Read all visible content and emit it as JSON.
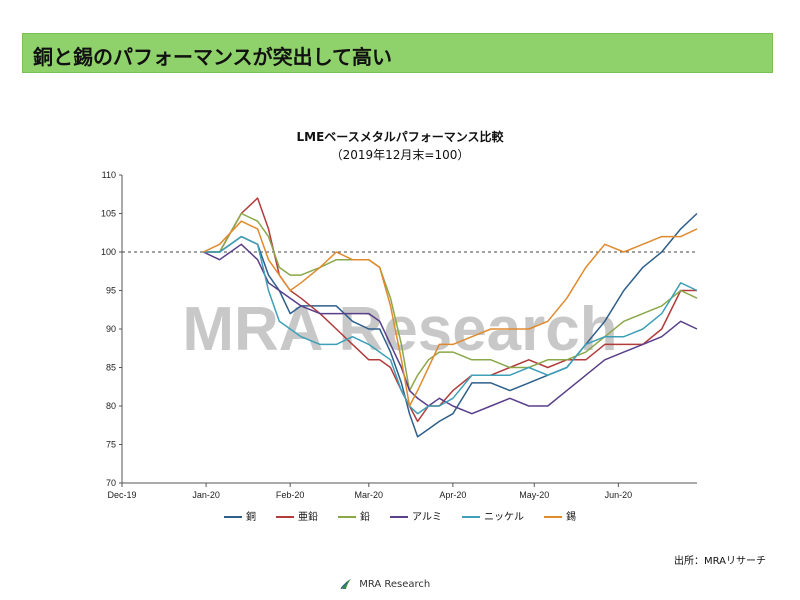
{
  "banner": {
    "title": "銅と錫のパフォーマンスが突出して高い"
  },
  "source_label": "出所：MRAリサーチ",
  "logo": {
    "text": "MRA Research",
    "icon": "mra-logo-icon"
  },
  "watermark": "MRA Research",
  "chart_data": {
    "type": "line",
    "title": "LMEベースメタルパフォーマンス比較",
    "subtitle": "（2019年12月末=100）",
    "ylim": [
      70,
      110
    ],
    "yticks": [
      "70",
      "75",
      "80",
      "85",
      "90",
      "95",
      "100",
      "105",
      "110"
    ],
    "xticks": [
      "Dec-19",
      "Jan-20",
      "Feb-20",
      "Mar-20",
      "Apr-20",
      "May-20",
      "Jun-20"
    ],
    "x_range": [
      "2019-12-01",
      "2020-06-30"
    ],
    "reference_line": 100,
    "series": [
      {
        "name": "銅",
        "color": "#2e5f8a",
        "points": [
          [
            "2019-12-31",
            100
          ],
          [
            "2020-01-06",
            100
          ],
          [
            "2020-01-14",
            102
          ],
          [
            "2020-01-20",
            101
          ],
          [
            "2020-01-24",
            97
          ],
          [
            "2020-01-28",
            95
          ],
          [
            "2020-02-01",
            92
          ],
          [
            "2020-02-05",
            93
          ],
          [
            "2020-02-12",
            93
          ],
          [
            "2020-02-18",
            93
          ],
          [
            "2020-02-24",
            91
          ],
          [
            "2020-03-01",
            90
          ],
          [
            "2020-03-05",
            90
          ],
          [
            "2020-03-09",
            87
          ],
          [
            "2020-03-13",
            83
          ],
          [
            "2020-03-16",
            79
          ],
          [
            "2020-03-19",
            76
          ],
          [
            "2020-03-23",
            77
          ],
          [
            "2020-03-27",
            78
          ],
          [
            "2020-04-01",
            79
          ],
          [
            "2020-04-08",
            83
          ],
          [
            "2020-04-15",
            83
          ],
          [
            "2020-04-22",
            82
          ],
          [
            "2020-04-29",
            83
          ],
          [
            "2020-05-06",
            84
          ],
          [
            "2020-05-13",
            85
          ],
          [
            "2020-05-20",
            88
          ],
          [
            "2020-05-27",
            91
          ],
          [
            "2020-06-03",
            95
          ],
          [
            "2020-06-10",
            98
          ],
          [
            "2020-06-17",
            100
          ],
          [
            "2020-06-24",
            103
          ],
          [
            "2020-06-30",
            105
          ]
        ]
      },
      {
        "name": "亜鉛",
        "color": "#b23b3b",
        "points": [
          [
            "2019-12-31",
            100
          ],
          [
            "2020-01-06",
            100
          ],
          [
            "2020-01-14",
            105
          ],
          [
            "2020-01-20",
            107
          ],
          [
            "2020-01-24",
            103
          ],
          [
            "2020-01-28",
            97
          ],
          [
            "2020-02-01",
            95
          ],
          [
            "2020-02-05",
            94
          ],
          [
            "2020-02-12",
            92
          ],
          [
            "2020-02-18",
            90
          ],
          [
            "2020-02-24",
            88
          ],
          [
            "2020-03-01",
            86
          ],
          [
            "2020-03-05",
            86
          ],
          [
            "2020-03-09",
            85
          ],
          [
            "2020-03-13",
            82
          ],
          [
            "2020-03-16",
            80
          ],
          [
            "2020-03-19",
            78
          ],
          [
            "2020-03-23",
            80
          ],
          [
            "2020-03-27",
            80
          ],
          [
            "2020-04-01",
            82
          ],
          [
            "2020-04-08",
            84
          ],
          [
            "2020-04-15",
            84
          ],
          [
            "2020-04-22",
            85
          ],
          [
            "2020-04-29",
            86
          ],
          [
            "2020-05-06",
            85
          ],
          [
            "2020-05-13",
            86
          ],
          [
            "2020-05-20",
            86
          ],
          [
            "2020-05-27",
            88
          ],
          [
            "2020-06-03",
            88
          ],
          [
            "2020-06-10",
            88
          ],
          [
            "2020-06-17",
            90
          ],
          [
            "2020-06-24",
            95
          ],
          [
            "2020-06-30",
            95
          ]
        ]
      },
      {
        "name": "鉛",
        "color": "#8aa84a",
        "points": [
          [
            "2019-12-31",
            100
          ],
          [
            "2020-01-06",
            100
          ],
          [
            "2020-01-14",
            105
          ],
          [
            "2020-01-20",
            104
          ],
          [
            "2020-01-24",
            102
          ],
          [
            "2020-01-28",
            98
          ],
          [
            "2020-02-01",
            97
          ],
          [
            "2020-02-05",
            97
          ],
          [
            "2020-02-12",
            98
          ],
          [
            "2020-02-18",
            99
          ],
          [
            "2020-02-24",
            99
          ],
          [
            "2020-03-01",
            99
          ],
          [
            "2020-03-05",
            98
          ],
          [
            "2020-03-09",
            94
          ],
          [
            "2020-03-13",
            88
          ],
          [
            "2020-03-16",
            82
          ],
          [
            "2020-03-19",
            84
          ],
          [
            "2020-03-23",
            86
          ],
          [
            "2020-03-27",
            87
          ],
          [
            "2020-04-01",
            87
          ],
          [
            "2020-04-08",
            86
          ],
          [
            "2020-04-15",
            86
          ],
          [
            "2020-04-22",
            85
          ],
          [
            "2020-04-29",
            85
          ],
          [
            "2020-05-06",
            86
          ],
          [
            "2020-05-13",
            86
          ],
          [
            "2020-05-20",
            87
          ],
          [
            "2020-05-27",
            89
          ],
          [
            "2020-06-03",
            91
          ],
          [
            "2020-06-10",
            92
          ],
          [
            "2020-06-17",
            93
          ],
          [
            "2020-06-24",
            95
          ],
          [
            "2020-06-30",
            94
          ]
        ]
      },
      {
        "name": "アルミ",
        "color": "#5a3f8a",
        "points": [
          [
            "2019-12-31",
            100
          ],
          [
            "2020-01-06",
            99
          ],
          [
            "2020-01-14",
            101
          ],
          [
            "2020-01-20",
            99
          ],
          [
            "2020-01-24",
            96
          ],
          [
            "2020-01-28",
            95
          ],
          [
            "2020-02-01",
            94
          ],
          [
            "2020-02-05",
            93
          ],
          [
            "2020-02-12",
            92
          ],
          [
            "2020-02-18",
            92
          ],
          [
            "2020-02-24",
            92
          ],
          [
            "2020-03-01",
            92
          ],
          [
            "2020-03-05",
            91
          ],
          [
            "2020-03-09",
            88
          ],
          [
            "2020-03-13",
            85
          ],
          [
            "2020-03-16",
            82
          ],
          [
            "2020-03-19",
            81
          ],
          [
            "2020-03-23",
            80
          ],
          [
            "2020-03-27",
            81
          ],
          [
            "2020-04-01",
            80
          ],
          [
            "2020-04-08",
            79
          ],
          [
            "2020-04-15",
            80
          ],
          [
            "2020-04-22",
            81
          ],
          [
            "2020-04-29",
            80
          ],
          [
            "2020-05-06",
            80
          ],
          [
            "2020-05-13",
            82
          ],
          [
            "2020-05-20",
            84
          ],
          [
            "2020-05-27",
            86
          ],
          [
            "2020-06-03",
            87
          ],
          [
            "2020-06-10",
            88
          ],
          [
            "2020-06-17",
            89
          ],
          [
            "2020-06-24",
            91
          ],
          [
            "2020-06-30",
            90
          ]
        ]
      },
      {
        "name": "ニッケル",
        "color": "#3ea0b8",
        "points": [
          [
            "2019-12-31",
            100
          ],
          [
            "2020-01-06",
            100
          ],
          [
            "2020-01-14",
            102
          ],
          [
            "2020-01-20",
            101
          ],
          [
            "2020-01-24",
            95
          ],
          [
            "2020-01-28",
            91
          ],
          [
            "2020-02-01",
            90
          ],
          [
            "2020-02-05",
            89
          ],
          [
            "2020-02-12",
            88
          ],
          [
            "2020-02-18",
            88
          ],
          [
            "2020-02-24",
            89
          ],
          [
            "2020-03-01",
            88
          ],
          [
            "2020-03-05",
            87
          ],
          [
            "2020-03-09",
            86
          ],
          [
            "2020-03-13",
            82
          ],
          [
            "2020-03-16",
            80
          ],
          [
            "2020-03-19",
            79
          ],
          [
            "2020-03-23",
            80
          ],
          [
            "2020-03-27",
            80
          ],
          [
            "2020-04-01",
            81
          ],
          [
            "2020-04-08",
            84
          ],
          [
            "2020-04-15",
            84
          ],
          [
            "2020-04-22",
            84
          ],
          [
            "2020-04-29",
            85
          ],
          [
            "2020-05-06",
            84
          ],
          [
            "2020-05-13",
            85
          ],
          [
            "2020-05-20",
            88
          ],
          [
            "2020-05-27",
            89
          ],
          [
            "2020-06-03",
            89
          ],
          [
            "2020-06-10",
            90
          ],
          [
            "2020-06-17",
            92
          ],
          [
            "2020-06-24",
            96
          ],
          [
            "2020-06-30",
            95
          ]
        ]
      },
      {
        "name": "錫",
        "color": "#e08a2e",
        "points": [
          [
            "2019-12-31",
            100
          ],
          [
            "2020-01-06",
            101
          ],
          [
            "2020-01-14",
            104
          ],
          [
            "2020-01-20",
            103
          ],
          [
            "2020-01-24",
            99
          ],
          [
            "2020-01-28",
            97
          ],
          [
            "2020-02-01",
            95
          ],
          [
            "2020-02-05",
            96
          ],
          [
            "2020-02-12",
            98
          ],
          [
            "2020-02-18",
            100
          ],
          [
            "2020-02-24",
            99
          ],
          [
            "2020-03-01",
            99
          ],
          [
            "2020-03-05",
            98
          ],
          [
            "2020-03-09",
            93
          ],
          [
            "2020-03-13",
            86
          ],
          [
            "2020-03-16",
            80
          ],
          [
            "2020-03-19",
            82
          ],
          [
            "2020-03-23",
            85
          ],
          [
            "2020-03-27",
            88
          ],
          [
            "2020-04-01",
            88
          ],
          [
            "2020-04-08",
            89
          ],
          [
            "2020-04-15",
            90
          ],
          [
            "2020-04-22",
            90
          ],
          [
            "2020-04-29",
            90
          ],
          [
            "2020-05-06",
            91
          ],
          [
            "2020-05-13",
            94
          ],
          [
            "2020-05-20",
            98
          ],
          [
            "2020-05-27",
            101
          ],
          [
            "2020-06-03",
            100
          ],
          [
            "2020-06-10",
            101
          ],
          [
            "2020-06-17",
            102
          ],
          [
            "2020-06-24",
            102
          ],
          [
            "2020-06-30",
            103
          ]
        ]
      }
    ]
  }
}
